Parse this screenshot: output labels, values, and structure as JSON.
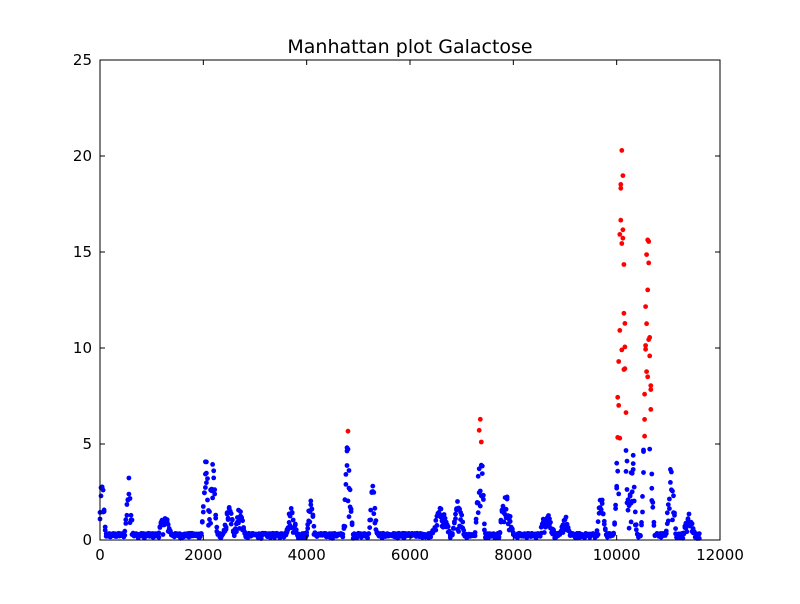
{
  "chart_data": {
    "type": "scatter",
    "title": "Manhattan plot Galactose",
    "xlabel": "",
    "ylabel": "",
    "xlim": [
      0,
      12000
    ],
    "ylim": [
      0,
      25
    ],
    "xticks": [
      "0",
      "2000",
      "4000",
      "6000",
      "8000",
      "10000",
      "12000"
    ],
    "yticks": [
      "0",
      "5",
      "10",
      "15",
      "20",
      "25"
    ],
    "grid": false,
    "legend": "none",
    "colors": {
      "below_threshold": "#0000ff",
      "above_threshold": "#ff0000",
      "axes": "#000000"
    },
    "threshold": 5,
    "peaks": [
      {
        "center": 40,
        "width": 50,
        "height": 3.2
      },
      {
        "center": 560,
        "width": 60,
        "height": 3.3
      },
      {
        "center": 1250,
        "width": 120,
        "height": 1.3
      },
      {
        "center": 2050,
        "width": 60,
        "height": 4.3
      },
      {
        "center": 2180,
        "width": 60,
        "height": 4.1
      },
      {
        "center": 2500,
        "width": 90,
        "height": 1.8
      },
      {
        "center": 2700,
        "width": 90,
        "height": 1.7
      },
      {
        "center": 3700,
        "width": 100,
        "height": 1.7
      },
      {
        "center": 4080,
        "width": 60,
        "height": 2.4
      },
      {
        "center": 4800,
        "width": 60,
        "height": 5.8
      },
      {
        "center": 5280,
        "width": 60,
        "height": 3.0
      },
      {
        "center": 6600,
        "width": 150,
        "height": 1.7
      },
      {
        "center": 6940,
        "width": 90,
        "height": 2.2
      },
      {
        "center": 7360,
        "width": 60,
        "height": 6.6
      },
      {
        "center": 7850,
        "width": 110,
        "height": 2.5
      },
      {
        "center": 8650,
        "width": 130,
        "height": 1.5
      },
      {
        "center": 9000,
        "width": 80,
        "height": 1.3
      },
      {
        "center": 9700,
        "width": 70,
        "height": 2.4
      },
      {
        "center": 10100,
        "width": 80,
        "height": 21.0
      },
      {
        "center": 10300,
        "width": 60,
        "height": 5.0
      },
      {
        "center": 10600,
        "width": 70,
        "height": 17.7
      },
      {
        "center": 11050,
        "width": 70,
        "height": 3.9
      },
      {
        "center": 11400,
        "width": 100,
        "height": 1.4
      }
    ],
    "x_start": 0,
    "x_end": 11600,
    "x_step": 20
  }
}
